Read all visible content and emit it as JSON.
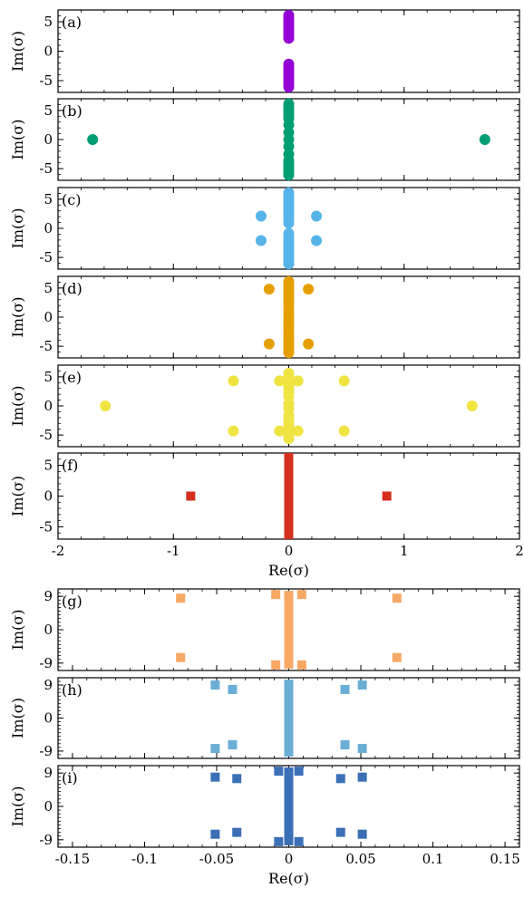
{
  "chart_data": [
    {
      "type": "scatter",
      "panel_label": "(a)",
      "ylabel": "Im(σ)",
      "xlim": [
        -2,
        2
      ],
      "ylim": [
        -7,
        7
      ],
      "yticks": [
        "5",
        "0",
        "-5"
      ],
      "ytick_values": [
        5,
        0,
        -5
      ],
      "color": "#9400d3",
      "marker": "circle",
      "points": [
        [
          0,
          6.1
        ],
        [
          0,
          5.6
        ],
        [
          0,
          5.1
        ],
        [
          0,
          4.6
        ],
        [
          0,
          4.1
        ],
        [
          0,
          3.6
        ],
        [
          0,
          3.1
        ],
        [
          0,
          2.6
        ],
        [
          0,
          2.2
        ],
        [
          0,
          -2.2
        ],
        [
          0,
          -2.6
        ],
        [
          0,
          -3.1
        ],
        [
          0,
          -3.6
        ],
        [
          0,
          -4.1
        ],
        [
          0,
          -4.6
        ],
        [
          0,
          -5.1
        ],
        [
          0,
          -5.6
        ],
        [
          0,
          -6.1
        ]
      ]
    },
    {
      "type": "scatter",
      "panel_label": "(b)",
      "ylabel": "Im(σ)",
      "xlim": [
        -2,
        2
      ],
      "ylim": [
        -7,
        7
      ],
      "yticks": [
        "5",
        "0",
        "-5"
      ],
      "ytick_values": [
        5,
        0,
        -5
      ],
      "color": "#009e73",
      "marker": "circle",
      "points": [
        [
          -1.7,
          0
        ],
        [
          1.7,
          0
        ],
        [
          0,
          6.1
        ],
        [
          0,
          5.6
        ],
        [
          0,
          5.1
        ],
        [
          0,
          4.6
        ],
        [
          0,
          4.1
        ],
        [
          0,
          3.6
        ],
        [
          0,
          2.5
        ],
        [
          0,
          1.2
        ],
        [
          0,
          0
        ],
        [
          0,
          -1.2
        ],
        [
          0,
          -2.5
        ],
        [
          0,
          -3.6
        ],
        [
          0,
          -4.1
        ],
        [
          0,
          -4.6
        ],
        [
          0,
          -5.1
        ],
        [
          0,
          -5.6
        ],
        [
          0,
          -6.1
        ]
      ]
    },
    {
      "type": "scatter",
      "panel_label": "(c)",
      "ylabel": "Im(σ)",
      "xlim": [
        -2,
        2
      ],
      "ylim": [
        -7,
        7
      ],
      "yticks": [
        "5",
        "0",
        "-5"
      ],
      "ytick_values": [
        5,
        0,
        -5
      ],
      "color": "#56b4e9",
      "marker": "circle",
      "points": [
        [
          -0.24,
          2.1
        ],
        [
          0.24,
          2.1
        ],
        [
          -0.24,
          -2.1
        ],
        [
          0.24,
          -2.1
        ],
        [
          0,
          6.1
        ],
        [
          0,
          5.6
        ],
        [
          0,
          5.1
        ],
        [
          0,
          4.6
        ],
        [
          0,
          4.1
        ],
        [
          0,
          3.6
        ],
        [
          0,
          3.1
        ],
        [
          0,
          2.6
        ],
        [
          0,
          2.1
        ],
        [
          0,
          1.6
        ],
        [
          0,
          0.9
        ],
        [
          0,
          -0.9
        ],
        [
          0,
          -1.6
        ],
        [
          0,
          -2.1
        ],
        [
          0,
          -2.6
        ],
        [
          0,
          -3.1
        ],
        [
          0,
          -3.6
        ],
        [
          0,
          -4.1
        ],
        [
          0,
          -4.6
        ],
        [
          0,
          -5.1
        ],
        [
          0,
          -5.6
        ],
        [
          0,
          -6.1
        ]
      ]
    },
    {
      "type": "scatter",
      "panel_label": "(d)",
      "ylabel": "Im(σ)",
      "xlim": [
        -2,
        2
      ],
      "ylim": [
        -7,
        7
      ],
      "yticks": [
        "5",
        "0",
        "-5"
      ],
      "ytick_values": [
        5,
        0,
        -5
      ],
      "color": "#e69f00",
      "marker": "circle",
      "points": [
        [
          -0.17,
          4.8
        ],
        [
          0.17,
          4.8
        ],
        [
          -0.17,
          -4.6
        ],
        [
          0.17,
          -4.6
        ],
        [
          0,
          6.1
        ],
        [
          0,
          5.6
        ],
        [
          0,
          5.1
        ],
        [
          0,
          4.6
        ],
        [
          0,
          4.1
        ],
        [
          0,
          3.6
        ],
        [
          0,
          3.1
        ],
        [
          0,
          2.5
        ],
        [
          0,
          1.8
        ],
        [
          0,
          1.2
        ],
        [
          0,
          0.6
        ],
        [
          0,
          0
        ],
        [
          0,
          -0.6
        ],
        [
          0,
          -1.2
        ],
        [
          0,
          -1.8
        ],
        [
          0,
          -2.5
        ],
        [
          0,
          -3.1
        ],
        [
          0,
          -3.6
        ],
        [
          0,
          -4.1
        ],
        [
          0,
          -4.6
        ],
        [
          0,
          -5.1
        ],
        [
          0,
          -5.6
        ],
        [
          0,
          -6.1
        ]
      ]
    },
    {
      "type": "scatter",
      "panel_label": "(e)",
      "ylabel": "Im(σ)",
      "xlim": [
        -2,
        2
      ],
      "ylim": [
        -7,
        7
      ],
      "yticks": [
        "5",
        "0",
        "-5"
      ],
      "ytick_values": [
        5,
        0,
        -5
      ],
      "color": "#f0e442",
      "marker": "circle",
      "points": [
        [
          -1.59,
          0
        ],
        [
          1.59,
          0
        ],
        [
          -0.48,
          4.3
        ],
        [
          0.48,
          4.3
        ],
        [
          -0.48,
          -4.3
        ],
        [
          0.48,
          -4.3
        ],
        [
          -0.08,
          4.3
        ],
        [
          0.08,
          4.3
        ],
        [
          -0.08,
          -4.3
        ],
        [
          0.08,
          -4.3
        ],
        [
          0,
          5.6
        ],
        [
          0,
          5.0
        ],
        [
          0,
          4.3
        ],
        [
          0,
          3.6
        ],
        [
          0,
          3.0
        ],
        [
          0,
          2.3
        ],
        [
          0,
          1.6
        ],
        [
          0,
          0.4
        ],
        [
          0,
          -0.4
        ],
        [
          0,
          -1.6
        ],
        [
          0,
          -2.3
        ],
        [
          0,
          -3.0
        ],
        [
          0,
          -3.6
        ],
        [
          0,
          -4.3
        ],
        [
          0,
          -5.0
        ],
        [
          0,
          -5.6
        ]
      ]
    },
    {
      "type": "scatter",
      "panel_label": "(f)",
      "ylabel": "Im(σ)",
      "xlabel": "Re(σ)",
      "xlim": [
        -2,
        2
      ],
      "ylim": [
        -7,
        7
      ],
      "xticks": [
        "-2",
        "-1",
        "0",
        "1",
        "2"
      ],
      "xtick_values": [
        -2,
        -1,
        0,
        1,
        2
      ],
      "yticks": [
        "5",
        "0",
        "-5"
      ],
      "ytick_values": [
        5,
        0,
        -5
      ],
      "color": "#d62e1f",
      "marker": "square",
      "column": [
        0,
        -7,
        7
      ],
      "points": [
        [
          -0.85,
          0
        ],
        [
          0.85,
          0
        ]
      ]
    },
    {
      "type": "scatter",
      "panel_label": "(g)",
      "ylabel": "Im(σ)",
      "xlim": [
        -0.16,
        0.16
      ],
      "ylim": [
        -11,
        11
      ],
      "yticks": [
        "9",
        "0",
        "-9"
      ],
      "ytick_values": [
        9,
        0,
        -9
      ],
      "color": "#f7a864",
      "marker": "square",
      "column": [
        0,
        -10.5,
        10.5
      ],
      "points": [
        [
          -0.075,
          8.5
        ],
        [
          0.075,
          8.5
        ],
        [
          -0.075,
          -7.5
        ],
        [
          0.075,
          -7.5
        ],
        [
          -0.009,
          9.5
        ],
        [
          0.009,
          9.5
        ],
        [
          -0.009,
          -9.5
        ],
        [
          0.009,
          -9.5
        ]
      ]
    },
    {
      "type": "scatter",
      "panel_label": "(h)",
      "ylabel": "Im(σ)",
      "xlim": [
        -0.16,
        0.16
      ],
      "ylim": [
        -11,
        11
      ],
      "yticks": [
        "9",
        "0",
        "-9"
      ],
      "ytick_values": [
        9,
        0,
        -9
      ],
      "color": "#6aaed6",
      "marker": "square",
      "column": [
        0,
        -10.5,
        10.5
      ],
      "points": [
        [
          -0.051,
          9.0
        ],
        [
          0.051,
          9.0
        ],
        [
          -0.039,
          7.8
        ],
        [
          0.039,
          7.8
        ],
        [
          -0.051,
          -8.3
        ],
        [
          0.051,
          -8.3
        ],
        [
          -0.039,
          -7.3
        ],
        [
          0.039,
          -7.3
        ]
      ]
    },
    {
      "type": "scatter",
      "panel_label": "(i)",
      "ylabel": "Im(σ)",
      "xlabel": "Re(σ)",
      "xlim": [
        -0.16,
        0.16
      ],
      "ylim": [
        -11,
        11
      ],
      "xticks": [
        "-0.15",
        "-0.1",
        "-0.05",
        "0",
        "0.05",
        "0.1",
        "0.15"
      ],
      "xtick_values": [
        -0.15,
        -0.1,
        -0.05,
        0,
        0.05,
        0.1,
        0.15
      ],
      "yticks": [
        "9",
        "0",
        "-9"
      ],
      "ytick_values": [
        9,
        0,
        -9
      ],
      "color": "#3b6fb6",
      "marker": "square",
      "column": [
        0,
        -10.5,
        10.5
      ],
      "points": [
        [
          -0.051,
          7.9
        ],
        [
          0.051,
          7.9
        ],
        [
          -0.036,
          7.5
        ],
        [
          0.036,
          7.5
        ],
        [
          -0.051,
          -7.5
        ],
        [
          0.051,
          -7.5
        ],
        [
          -0.036,
          -7.0
        ],
        [
          0.036,
          -7.0
        ],
        [
          -0.007,
          9.5
        ],
        [
          0.007,
          9.5
        ],
        [
          -0.007,
          -9.5
        ],
        [
          0.007,
          -9.5
        ]
      ]
    }
  ]
}
